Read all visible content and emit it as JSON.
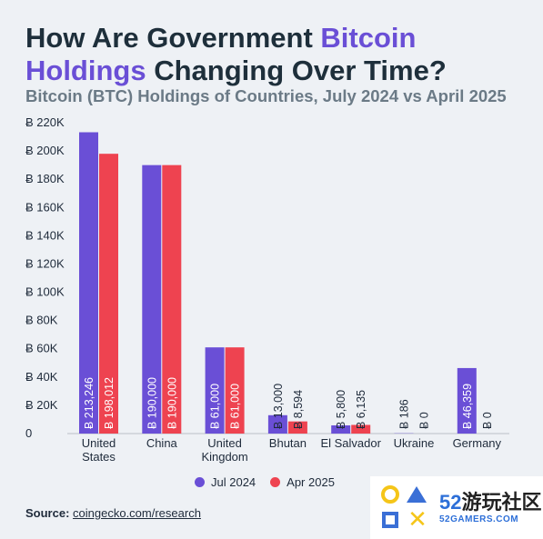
{
  "title": {
    "part1": "How Are Government ",
    "highlight1": "Bitcoin",
    "highlight2": "Holdings",
    "part2": " Changing Over Time?"
  },
  "subtitle": "Bitcoin (BTC) Holdings of Countries, July 2024 vs April 2025",
  "source": {
    "label": "Source:",
    "link": "coingecko.com/research"
  },
  "watermark": {
    "number": "52",
    "cn": "游玩社区",
    "domain": "52GAMERS.COM"
  },
  "colors": {
    "series1": "#6a4fd6",
    "series2": "#ee4350",
    "highlight": "#6a4fd6"
  },
  "chart_data": {
    "type": "bar",
    "title": "How Are Government Bitcoin Holdings Changing Over Time?",
    "subtitle": "Bitcoin (BTC) Holdings of Countries, July 2024 vs April 2025",
    "categories": [
      "United\nStates",
      "China",
      "United\nKingdom",
      "Bhutan",
      "El Salvador",
      "Ukraine",
      "Germany"
    ],
    "series": [
      {
        "name": "Jul 2024",
        "values": [
          213246,
          190000,
          61000,
          13000,
          5800,
          186,
          46359
        ],
        "labels": [
          "Ƀ 213,246",
          "Ƀ 190,000",
          "Ƀ 61,000",
          "Ƀ 13,000",
          "Ƀ 5,800",
          "Ƀ 186",
          "Ƀ 46,359"
        ]
      },
      {
        "name": "Apr 2025",
        "values": [
          198012,
          190000,
          61000,
          8594,
          6135,
          0,
          0
        ],
        "labels": [
          "Ƀ 198,012",
          "Ƀ 190,000",
          "Ƀ 61,000",
          "Ƀ 8,594",
          "Ƀ 6,135",
          "Ƀ 0",
          "Ƀ 0"
        ]
      }
    ],
    "ylim": [
      0,
      220000
    ],
    "yticks": [
      0,
      20000,
      40000,
      60000,
      80000,
      100000,
      120000,
      140000,
      160000,
      180000,
      200000,
      220000
    ],
    "ytick_labels": [
      "0",
      "Ƀ 20K",
      "Ƀ 40K",
      "Ƀ 60K",
      "Ƀ 80K",
      "Ƀ 100K",
      "Ƀ 120K",
      "Ƀ 140K",
      "Ƀ 160K",
      "Ƀ 180K",
      "Ƀ 200K",
      "Ƀ 220K"
    ],
    "grid": false,
    "legend": "bottom"
  }
}
